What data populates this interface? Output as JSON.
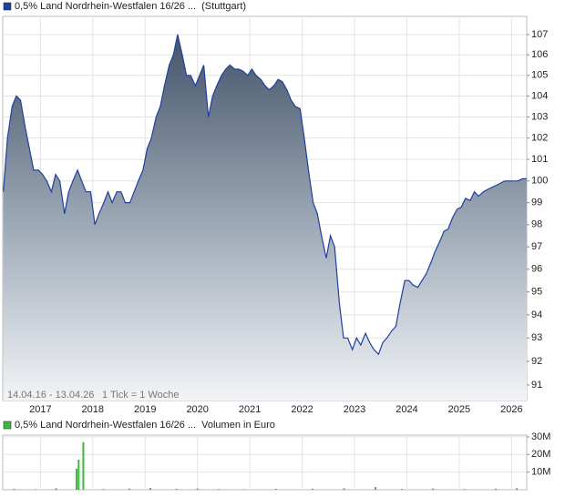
{
  "chart_data": [
    {
      "type": "area",
      "title": "0,5% Land Nordrhein-Westfalen 16/26 ...",
      "subtitle": "(Stuttgart)",
      "annotations": [
        "14.04.16 - 13.04.26",
        "1 Tick = 1 Woche"
      ],
      "color": "#1f3f9f",
      "log_scale": true,
      "grid": true,
      "x": [
        2016.29,
        2016.37,
        2016.46,
        2016.54,
        2016.62,
        2016.71,
        2016.79,
        2016.87,
        2016.96,
        2017.04,
        2017.12,
        2017.21,
        2017.29,
        2017.37,
        2017.46,
        2017.54,
        2017.62,
        2017.71,
        2017.79,
        2017.87,
        2017.96,
        2018.04,
        2018.12,
        2018.21,
        2018.29,
        2018.37,
        2018.46,
        2018.54,
        2018.62,
        2018.71,
        2018.79,
        2018.87,
        2018.96,
        2019.04,
        2019.12,
        2019.21,
        2019.29,
        2019.37,
        2019.46,
        2019.54,
        2019.62,
        2019.71,
        2019.79,
        2019.87,
        2019.96,
        2020.04,
        2020.12,
        2020.21,
        2020.29,
        2020.37,
        2020.46,
        2020.54,
        2020.62,
        2020.71,
        2020.79,
        2020.87,
        2020.96,
        2021.04,
        2021.12,
        2021.21,
        2021.29,
        2021.37,
        2021.46,
        2021.54,
        2021.62,
        2021.71,
        2021.79,
        2021.87,
        2021.96,
        2022.04,
        2022.12,
        2022.21,
        2022.29,
        2022.37,
        2022.46,
        2022.54,
        2022.62,
        2022.71,
        2022.79,
        2022.87,
        2022.96,
        2023.04,
        2023.12,
        2023.21,
        2023.29,
        2023.37,
        2023.46,
        2023.54,
        2023.62,
        2023.71,
        2023.79,
        2023.87,
        2023.96,
        2024.04,
        2024.12,
        2024.21,
        2024.29,
        2024.37,
        2024.46,
        2024.54,
        2024.62,
        2024.71,
        2024.79,
        2024.87,
        2024.96,
        2025.04,
        2025.12,
        2025.21,
        2025.29,
        2025.37,
        2025.46,
        2025.54,
        2025.62,
        2025.71,
        2025.79,
        2025.87,
        2025.96,
        2026.04,
        2026.12,
        2026.21,
        2026.29
      ],
      "values": [
        99.5,
        102,
        103.5,
        104,
        103.8,
        102.5,
        101.5,
        100.5,
        100.5,
        100.3,
        100,
        99.5,
        100.3,
        100,
        98.5,
        99.5,
        100,
        100.5,
        100,
        99.5,
        99.5,
        98,
        98.5,
        99,
        99.5,
        99,
        99.5,
        99.5,
        99,
        99,
        99.5,
        100,
        100.5,
        101.5,
        102,
        103,
        103.5,
        104.5,
        105.5,
        106,
        107,
        106,
        105,
        105,
        104.5,
        105,
        105.5,
        103,
        104,
        104.5,
        105,
        105.3,
        105.5,
        105.3,
        105.3,
        105.2,
        105,
        105.3,
        105,
        104.8,
        104.5,
        104.3,
        104.5,
        104.8,
        104.7,
        104.3,
        103.8,
        103.5,
        103.4,
        102,
        100.5,
        99,
        98.5,
        97.5,
        96.5,
        97.5,
        97,
        94.5,
        93,
        93,
        92.5,
        93,
        92.7,
        93.2,
        92.8,
        92.5,
        92.3,
        92.8,
        93,
        93.3,
        93.5,
        94.5,
        95.5,
        95.5,
        95.3,
        95.2,
        95.5,
        95.8,
        96.3,
        96.8,
        97.2,
        97.7,
        97.8,
        98.3,
        98.7,
        98.8,
        99.2,
        99.1,
        99.5,
        99.3,
        99.5,
        99.6,
        99.7,
        99.8,
        99.9,
        100,
        100,
        100,
        100,
        100.1,
        100.1
      ],
      "xlim": [
        2016.28,
        2026.29
      ],
      "xticks": [
        2017,
        2018,
        2019,
        2020,
        2021,
        2022,
        2023,
        2024,
        2025,
        2026
      ],
      "ylim": [
        90.35,
        107.9
      ],
      "yticks": [
        91,
        92,
        93,
        94,
        95,
        96,
        97,
        98,
        99,
        100,
        101,
        102,
        103,
        104,
        105,
        106,
        107
      ]
    },
    {
      "type": "bar",
      "title": "0,5% Land Nordrhein-Westfalen 16/26 ...",
      "subtitle": "Volumen in Euro",
      "color": "#3cb83c",
      "grid": true,
      "x": [
        2016.5,
        2016.9,
        2017.3,
        2017.69,
        2017.73,
        2017.82,
        2018.2,
        2018.7,
        2019.1,
        2019.6,
        2020.0,
        2020.4,
        2020.9,
        2021.5,
        2022.2,
        2022.8,
        2023.4,
        2023.9,
        2024.5,
        2025.1,
        2025.7,
        2026.1
      ],
      "values": [
        500000,
        300000,
        800000,
        12000000,
        17000000,
        27000000,
        400000,
        600000,
        1000000,
        500000,
        700000,
        400000,
        300000,
        500000,
        600000,
        800000,
        1500000,
        500000,
        700000,
        400000,
        600000,
        900000
      ],
      "xlim": [
        2016.28,
        2026.29
      ],
      "xticks": [
        2017,
        2018,
        2019,
        2020,
        2021,
        2022,
        2023,
        2024,
        2025,
        2026
      ],
      "ylim": [
        0,
        31000000
      ],
      "yticks": [
        {
          "value": 10000000,
          "label": "10M"
        },
        {
          "value": 20000000,
          "label": "20M"
        },
        {
          "value": 30000000,
          "label": "30M"
        }
      ]
    }
  ]
}
